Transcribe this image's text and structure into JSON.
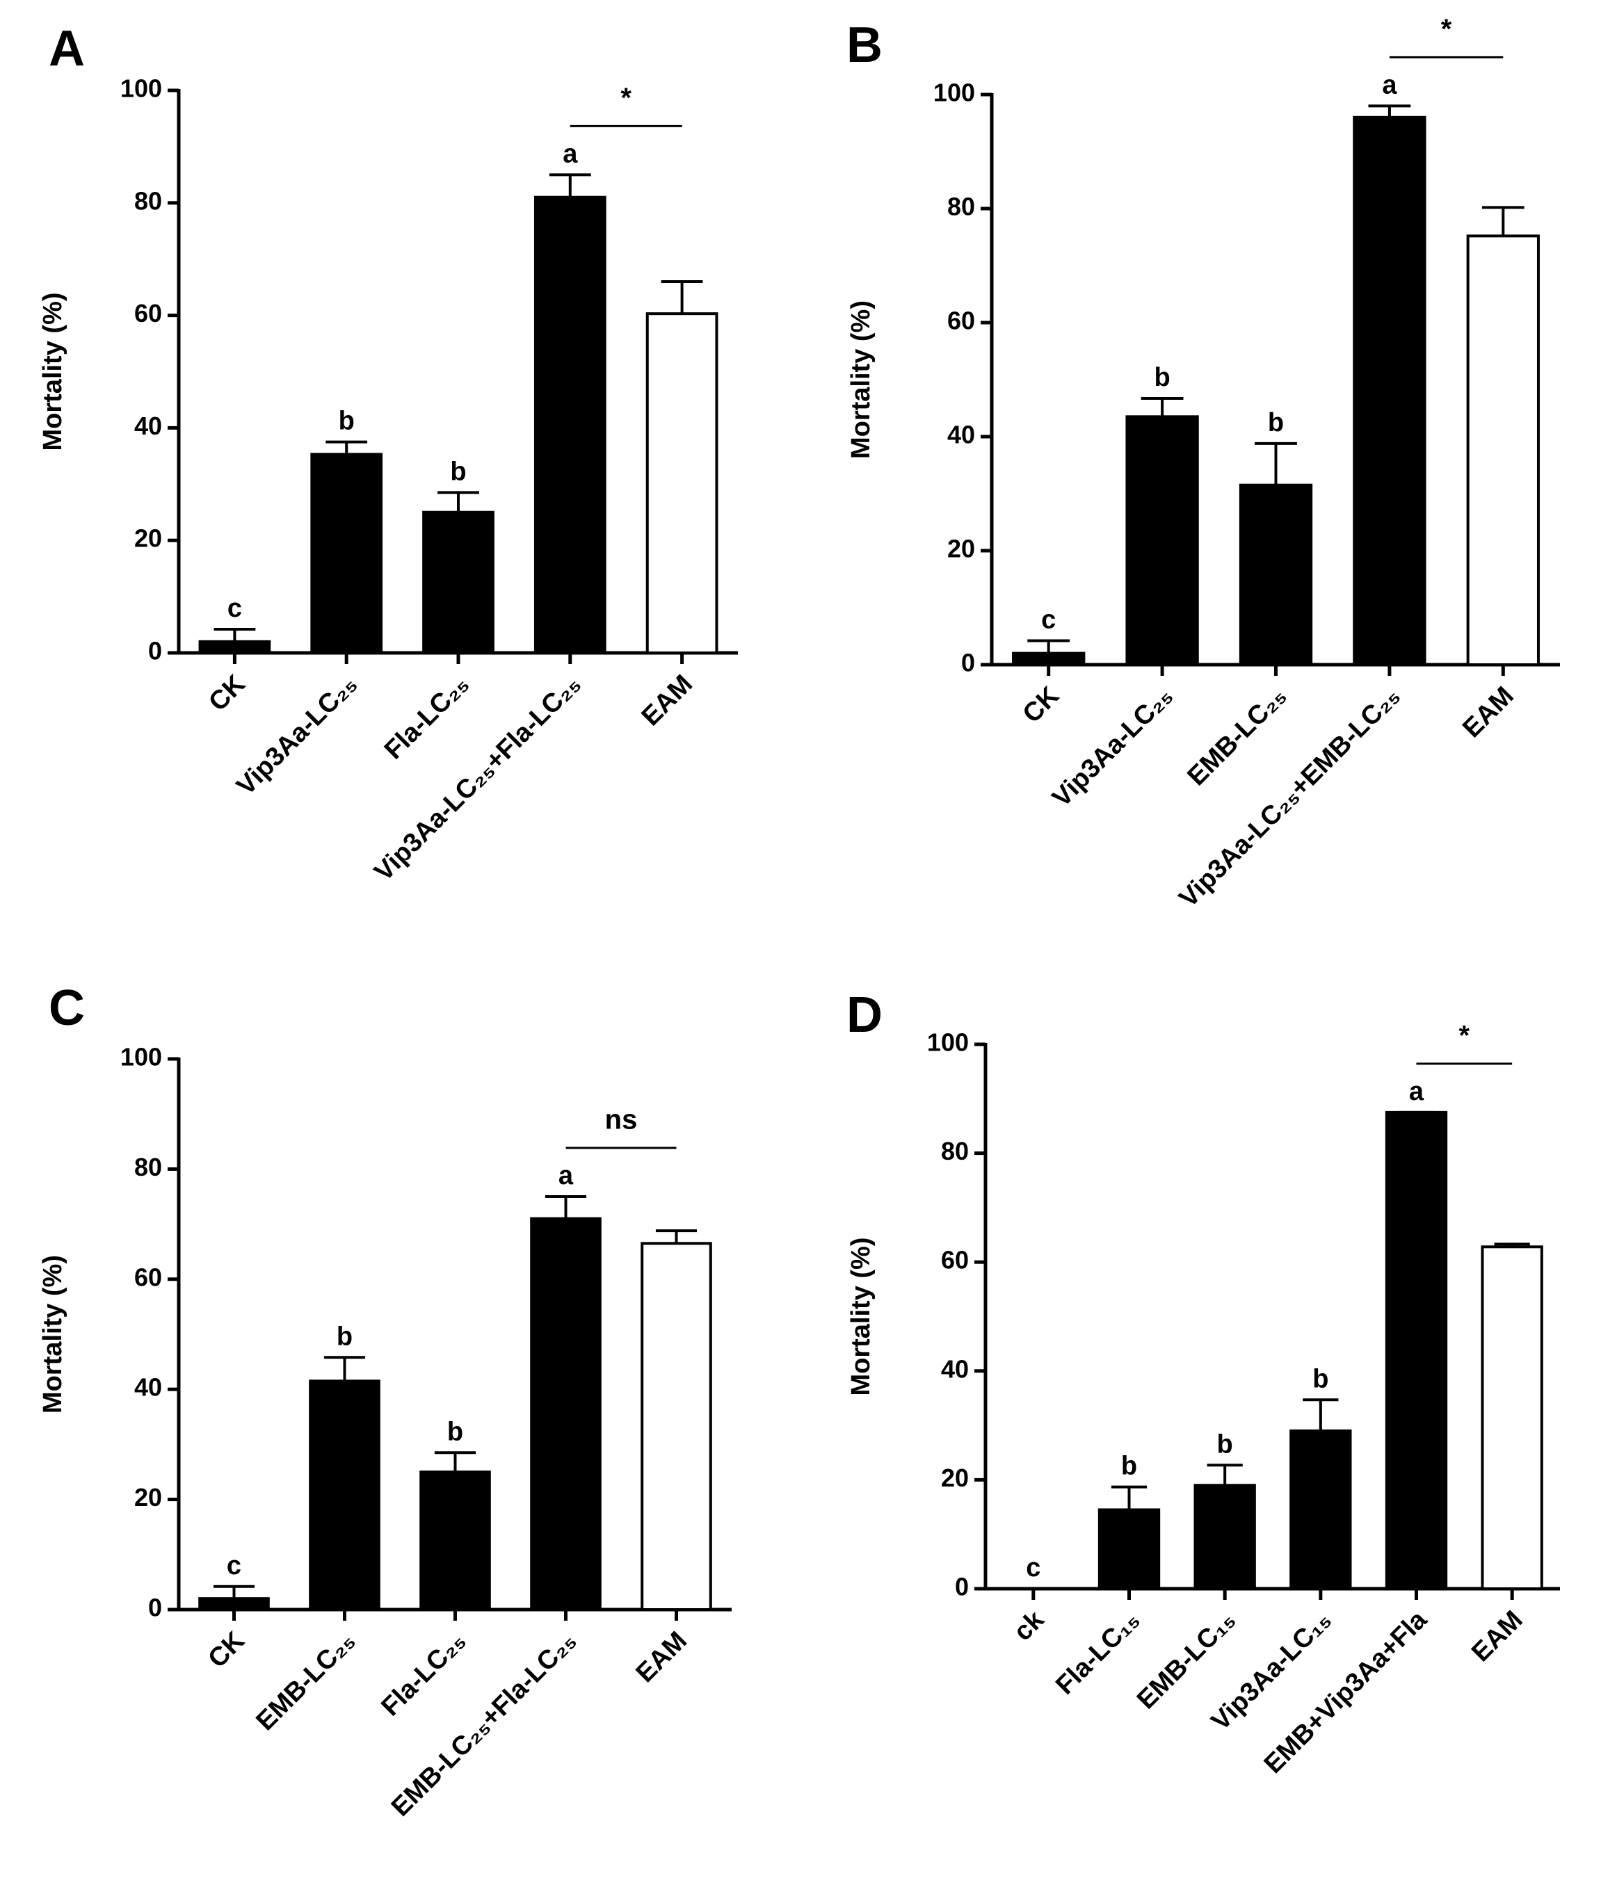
{
  "chart_data": [
    {
      "type": "bar",
      "panel": "A",
      "ylabel": "Mortality (%)",
      "categories": [
        "CK",
        "Vip3Aa-LC₂₅",
        "Fla-LC₂₅",
        "Vip3Aa-LC₂₅+Fla-LC₂₅",
        "EAM"
      ],
      "values": [
        2,
        35.3,
        25,
        81,
        60.3
      ],
      "errors": [
        2.2,
        2.2,
        3.5,
        4,
        5.7
      ],
      "letters": [
        "c",
        "b",
        "b",
        "a",
        null
      ],
      "colors": [
        "#000000",
        "#000000",
        "#000000",
        "#000000",
        "#ffffff"
      ],
      "significance": "*",
      "ylim": [
        0,
        100
      ],
      "yticks": [
        0,
        20,
        40,
        60,
        80,
        100
      ]
    },
    {
      "type": "bar",
      "panel": "B",
      "ylabel": "Mortality (%)",
      "categories": [
        "CK",
        "Vip3Aa-LC₂₅",
        "EMB-LC₂₅",
        "Vip3Aa-LC₂₅+EMB-LC₂₅",
        "EAM"
      ],
      "values": [
        2,
        43.5,
        31.5,
        96,
        75.2
      ],
      "errors": [
        2.2,
        3.2,
        7.3,
        2,
        5
      ],
      "letters": [
        "c",
        "b",
        "b",
        "a",
        null
      ],
      "colors": [
        "#000000",
        "#000000",
        "#000000",
        "#000000",
        "#ffffff"
      ],
      "significance": "*",
      "ylim": [
        0,
        100
      ],
      "yticks": [
        0,
        20,
        40,
        60,
        80,
        100
      ]
    },
    {
      "type": "bar",
      "panel": "C",
      "ylabel": "Mortality (%)",
      "categories": [
        "CK",
        "EMB-LC₂₅",
        "Fla-LC₂₅",
        "EMB-LC₂₅+Fla-LC₂₅",
        "EAM"
      ],
      "values": [
        2,
        41.5,
        25,
        71,
        66.5
      ],
      "errors": [
        2.2,
        4.3,
        3.5,
        4,
        2.3
      ],
      "letters": [
        "c",
        "b",
        "b",
        "a",
        null
      ],
      "colors": [
        "#000000",
        "#000000",
        "#000000",
        "#000000",
        "#ffffff"
      ],
      "significance": "ns",
      "ylim": [
        0,
        100
      ],
      "yticks": [
        0,
        20,
        40,
        60,
        80,
        100
      ]
    },
    {
      "type": "bar",
      "panel": "D",
      "ylabel": "Mortality (%)",
      "categories": [
        "ck",
        "Fla-LC₁₅",
        "EMB-LC₁₅",
        "Vip3Aa-LC₁₅",
        "EMB+Vip3Aa+Fla",
        "EAM"
      ],
      "values": [
        0,
        14.5,
        19,
        29,
        87.5,
        62.8
      ],
      "errors": [
        0,
        4.2,
        3.7,
        5.7,
        0,
        0.5
      ],
      "letters": [
        "c",
        "b",
        "b",
        "b",
        "a",
        null
      ],
      "colors": [
        "#000000",
        "#000000",
        "#000000",
        "#000000",
        "#000000",
        "#ffffff"
      ],
      "significance": "*",
      "ylim": [
        0,
        100
      ],
      "yticks": [
        0,
        20,
        40,
        60,
        80,
        100
      ]
    }
  ]
}
